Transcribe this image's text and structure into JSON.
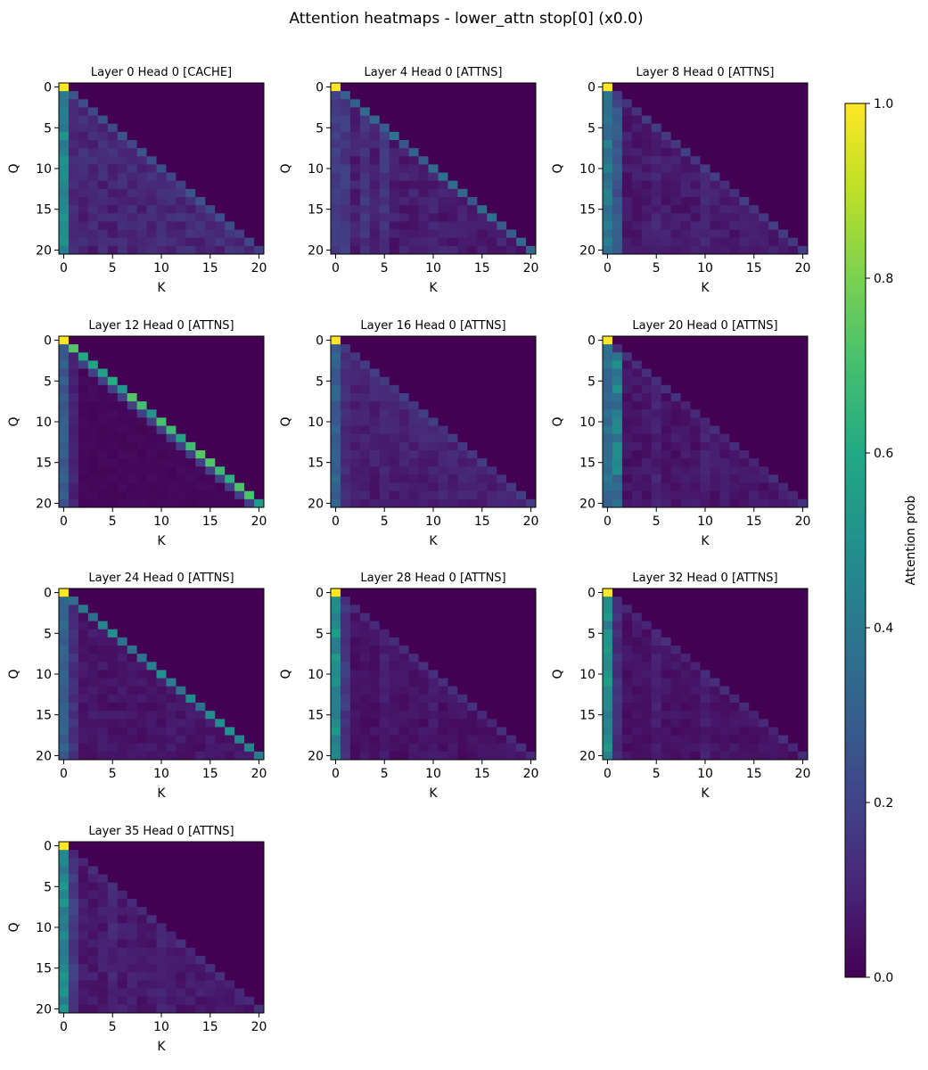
{
  "figure": {
    "title": "Attention heatmaps - lower_attn stop[0] (x0.0)"
  },
  "colorbar": {
    "label": "Attention prob",
    "ticks": [
      "0.0",
      "0.2",
      "0.4",
      "0.6",
      "0.8",
      "1.0"
    ],
    "range": [
      0.0,
      1.0
    ],
    "colormap": "viridis"
  },
  "chart_data": [
    {
      "type": "heatmap",
      "title": "Layer 0 Head 0 [CACHE]",
      "xlabel": "K",
      "ylabel": "Q",
      "size": 21,
      "xticks": [
        0,
        5,
        10,
        15,
        20
      ],
      "yticks": [
        0,
        5,
        10,
        15,
        20
      ],
      "pattern": "spread",
      "sink_col0": 0.45,
      "diag": 0.22,
      "col1": 0.12,
      "base": 0.09
    },
    {
      "type": "heatmap",
      "title": "Layer 4 Head 0 [ATTNS]",
      "xlabel": "K",
      "ylabel": "Q",
      "size": 21,
      "xticks": [
        0,
        5,
        10,
        15,
        20
      ],
      "yticks": [
        0,
        5,
        10,
        15,
        20
      ],
      "pattern": "streaky",
      "sink_col0": 0.18,
      "diag": 0.32,
      "col1": 0.16,
      "base": 0.08
    },
    {
      "type": "heatmap",
      "title": "Layer 8 Head 0 [ATTNS]",
      "xlabel": "K",
      "ylabel": "Q",
      "size": 21,
      "xticks": [
        0,
        5,
        10,
        15,
        20
      ],
      "yticks": [
        0,
        5,
        10,
        15,
        20
      ],
      "pattern": "sink",
      "sink_col0": 0.38,
      "diag": 0.16,
      "col1": 0.25,
      "base": 0.07
    },
    {
      "type": "heatmap",
      "title": "Layer 12 Head 0 [ATTNS]",
      "xlabel": "K",
      "ylabel": "Q",
      "size": 21,
      "xticks": [
        0,
        5,
        10,
        15,
        20
      ],
      "yticks": [
        0,
        5,
        10,
        15,
        20
      ],
      "pattern": "offdiag",
      "sink_col0": 0.28,
      "diag": 0.62,
      "col1": 0.1,
      "base": 0.02
    },
    {
      "type": "heatmap",
      "title": "Layer 16 Head 0 [ATTNS]",
      "xlabel": "K",
      "ylabel": "Q",
      "size": 21,
      "xticks": [
        0,
        5,
        10,
        15,
        20
      ],
      "yticks": [
        0,
        5,
        10,
        15,
        20
      ],
      "pattern": "spread",
      "sink_col0": 0.3,
      "diag": 0.16,
      "col1": 0.12,
      "base": 0.07
    },
    {
      "type": "heatmap",
      "title": "Layer 20 Head 0 [ATTNS]",
      "xlabel": "K",
      "ylabel": "Q",
      "size": 21,
      "xticks": [
        0,
        5,
        10,
        15,
        20
      ],
      "yticks": [
        0,
        5,
        10,
        15,
        20
      ],
      "pattern": "sink",
      "sink_col0": 0.35,
      "diag": 0.12,
      "col1": 0.4,
      "base": 0.06
    },
    {
      "type": "heatmap",
      "title": "Layer 24 Head 0 [ATTNS]",
      "xlabel": "K",
      "ylabel": "Q",
      "size": 21,
      "xticks": [
        0,
        5,
        10,
        15,
        20
      ],
      "yticks": [
        0,
        5,
        10,
        15,
        20
      ],
      "pattern": "diag",
      "sink_col0": 0.3,
      "diag": 0.42,
      "col1": 0.14,
      "base": 0.06
    },
    {
      "type": "heatmap",
      "title": "Layer 28 Head 0 [ATTNS]",
      "xlabel": "K",
      "ylabel": "Q",
      "size": 21,
      "xticks": [
        0,
        5,
        10,
        15,
        20
      ],
      "yticks": [
        0,
        5,
        10,
        15,
        20
      ],
      "pattern": "sink",
      "sink_col0": 0.48,
      "diag": 0.12,
      "col1": 0.16,
      "base": 0.05
    },
    {
      "type": "heatmap",
      "title": "Layer 32 Head 0 [ATTNS]",
      "xlabel": "K",
      "ylabel": "Q",
      "size": 21,
      "xticks": [
        0,
        5,
        10,
        15,
        20
      ],
      "yticks": [
        0,
        5,
        10,
        15,
        20
      ],
      "pattern": "sink",
      "sink_col0": 0.48,
      "diag": 0.12,
      "col1": 0.13,
      "base": 0.05
    },
    {
      "type": "heatmap",
      "title": "Layer 35 Head 0 [ATTNS]",
      "xlabel": "K",
      "ylabel": "Q",
      "size": 21,
      "xticks": [
        0,
        5,
        10,
        15,
        20
      ],
      "yticks": [
        0,
        5,
        10,
        15,
        20
      ],
      "pattern": "sink",
      "sink_col0": 0.46,
      "diag": 0.12,
      "col1": 0.18,
      "base": 0.07
    }
  ]
}
